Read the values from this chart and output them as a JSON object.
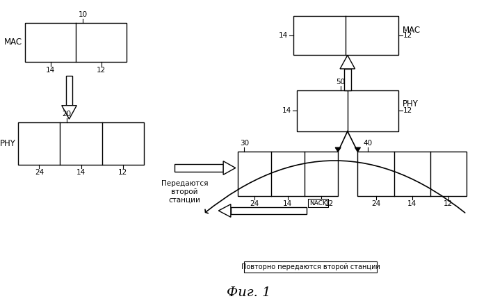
{
  "title": "Фиг. 1",
  "background_color": "#ffffff",
  "text_color": "#000000",
  "ec": "#000000",
  "fc": "#ffffff",
  "labels": {
    "mac_left": "MAC",
    "mac_right": "MAC",
    "phy_left": "PHY",
    "phy_right": "PHY",
    "n10": "10",
    "n12": "12",
    "n14": "14",
    "n20": "20",
    "n24": "24",
    "n30": "30",
    "n40": "40",
    "n50": "50",
    "nack": "NACK",
    "text_fwd": "Передаются\nвторой\nстанции",
    "text_retx": "Повторно передаются второй станции"
  },
  "fs_small": 7.5,
  "fs_num": 7.5,
  "fs_label": 8.5,
  "fs_title": 14
}
